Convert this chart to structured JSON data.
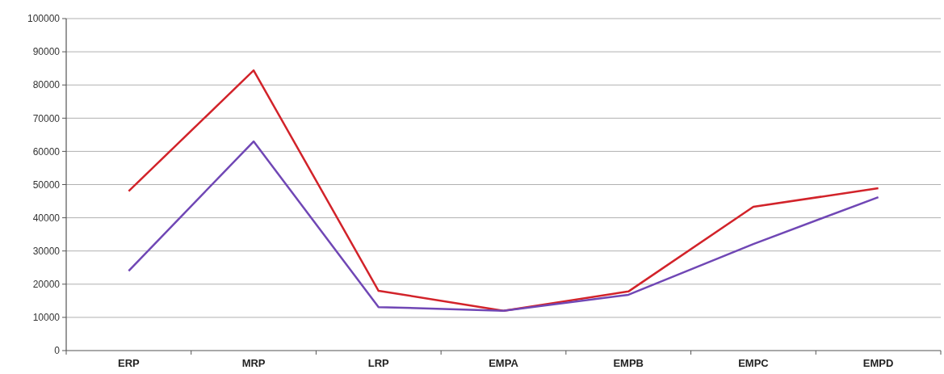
{
  "chart_data": {
    "type": "line",
    "categories": [
      "ERP",
      "MRP",
      "LRP",
      "EMPA",
      "EMPB",
      "EMPC",
      "EMPD"
    ],
    "series": [
      {
        "color": "#d2232a",
        "values": [
          48000,
          84400,
          18000,
          12000,
          17800,
          43300,
          48900
        ]
      },
      {
        "color": "#7047b5",
        "values": [
          24000,
          63000,
          13100,
          12000,
          16800,
          32100,
          46200
        ]
      }
    ],
    "ylim": [
      0,
      100000
    ],
    "yticks": [
      0,
      10000,
      20000,
      30000,
      40000,
      50000,
      60000,
      70000,
      80000,
      90000,
      100000
    ],
    "grid": "y",
    "marker": "none",
    "line_style": "solid"
  }
}
